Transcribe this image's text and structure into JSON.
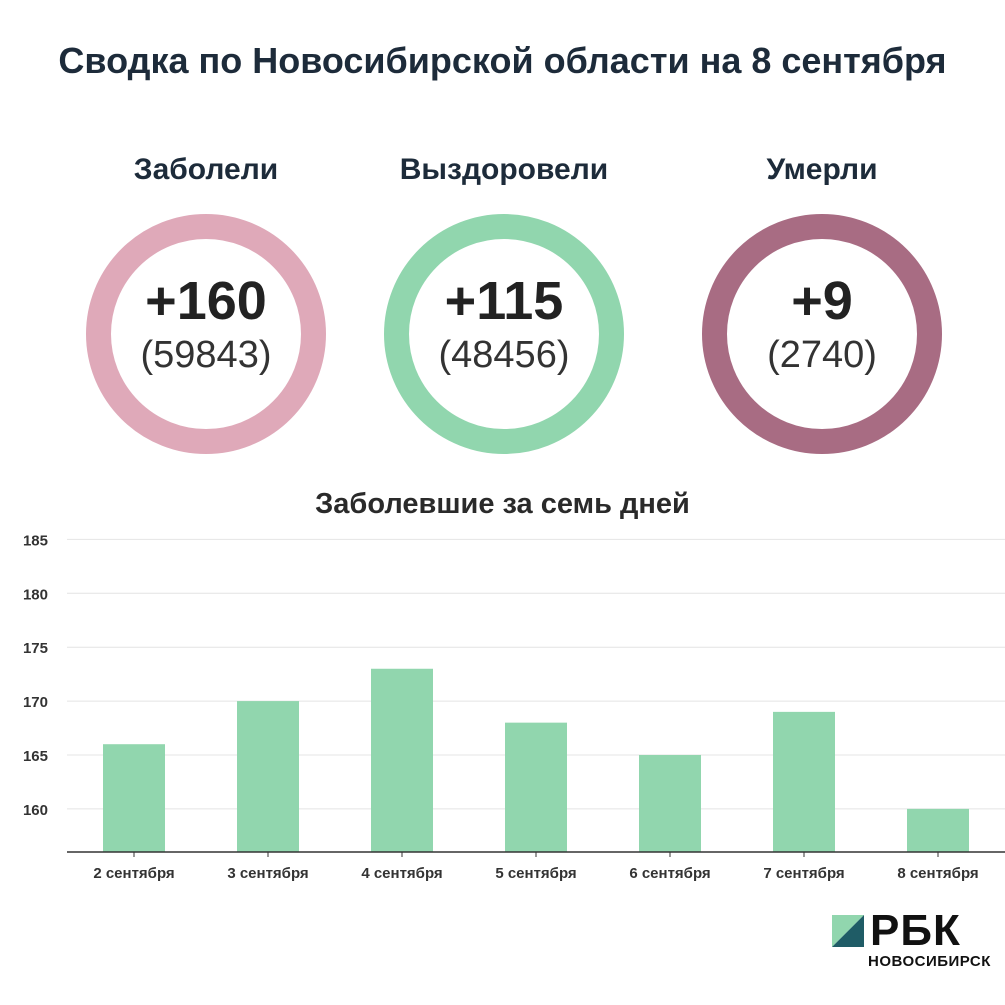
{
  "title": "Сводка по Новосибирской области на 8 сентября",
  "stats": [
    {
      "label": "Заболели",
      "delta": "+160",
      "total": "(59843)",
      "color": "#dfa9b9"
    },
    {
      "label": "Выздоровели",
      "delta": "+115",
      "total": "(48456)",
      "color": "#91d6ae"
    },
    {
      "label": "Умерли",
      "delta": "+9",
      "total": "(2740)",
      "color": "#a86c83"
    }
  ],
  "chart_data": {
    "type": "bar",
    "title": "Заболевшие за семь дней",
    "categories": [
      "2 сентября",
      "3 сентября",
      "4 сентября",
      "5 сентября",
      "6 сентября",
      "7 сентября",
      "8 сентября"
    ],
    "values": [
      166,
      170,
      173,
      168,
      165,
      169,
      160
    ],
    "yticks": [
      160,
      165,
      170,
      175,
      180,
      185
    ],
    "ylim": [
      156,
      185
    ],
    "bar_color": "#91d6ae",
    "grid": true,
    "xlabel": "",
    "ylabel": ""
  },
  "logo": {
    "name": "РБК",
    "sub": "НОВОСИБИРСК",
    "mark_color": "#1f5c66",
    "mark_color_light": "#91d6ae"
  }
}
